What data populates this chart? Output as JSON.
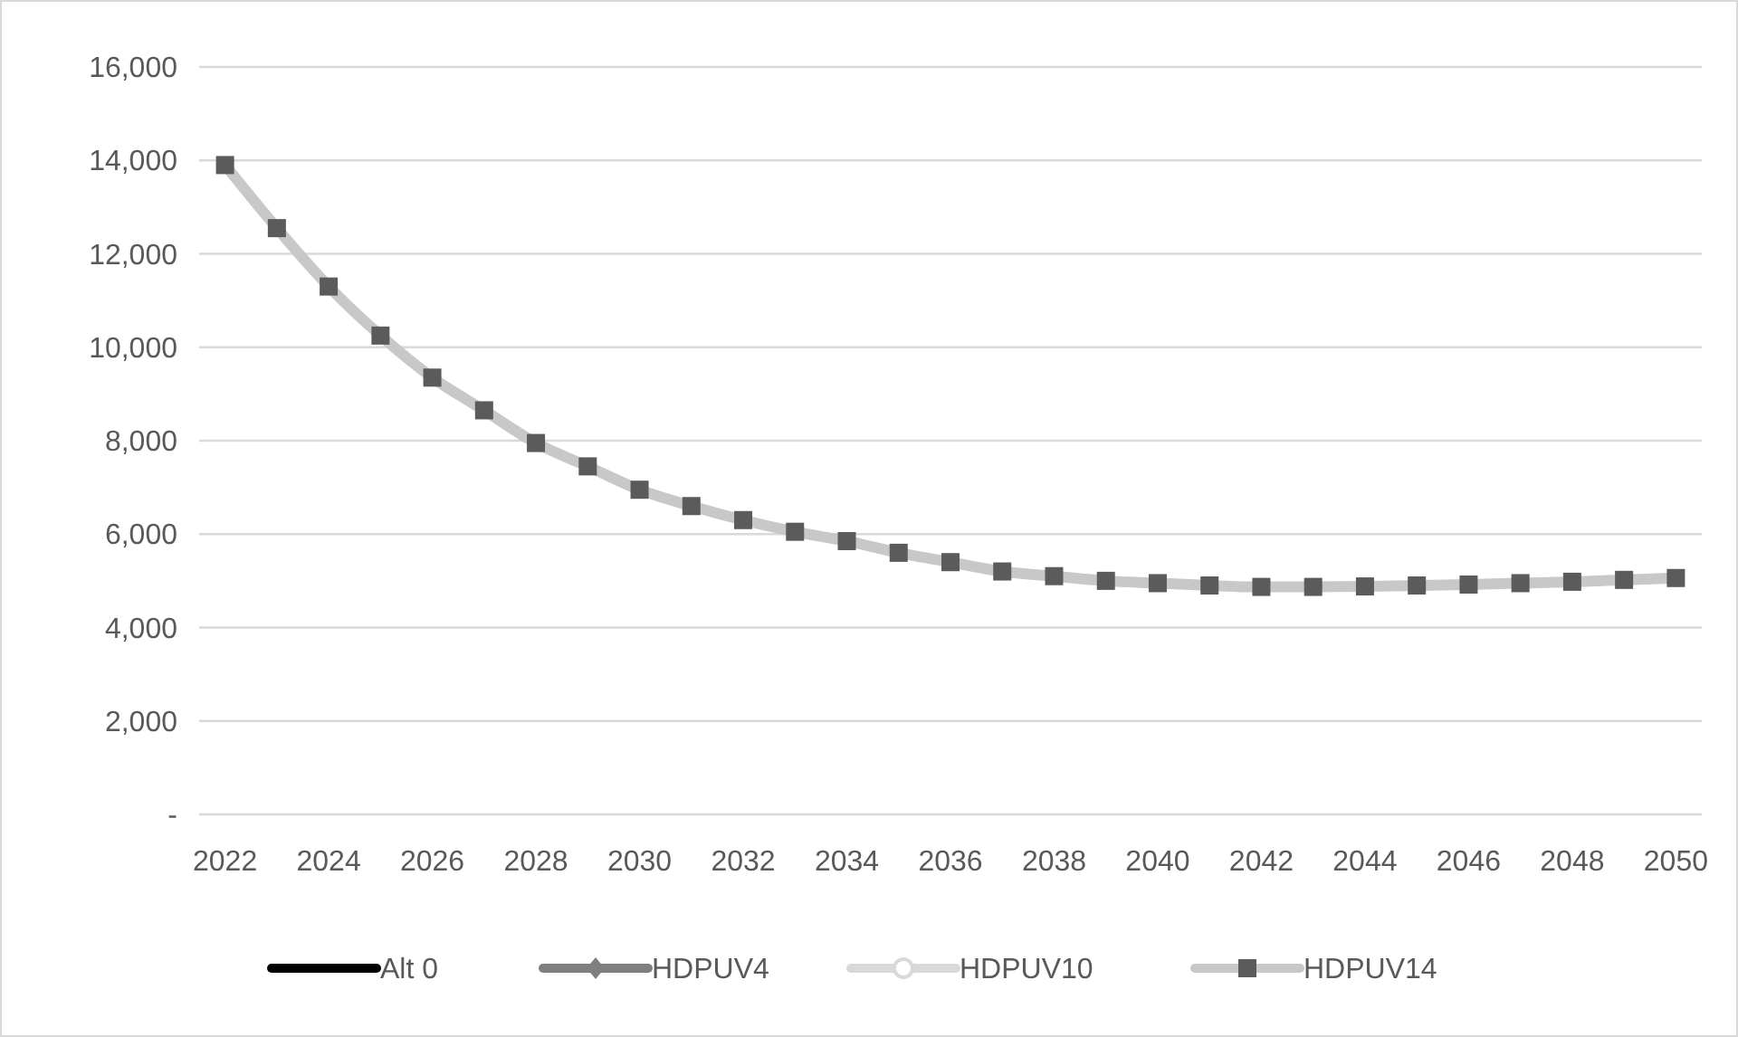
{
  "chart_data": {
    "type": "line",
    "x": [
      2022,
      2023,
      2024,
      2025,
      2026,
      2027,
      2028,
      2029,
      2030,
      2031,
      2032,
      2033,
      2034,
      2035,
      2036,
      2037,
      2038,
      2039,
      2040,
      2041,
      2042,
      2043,
      2044,
      2045,
      2046,
      2047,
      2048,
      2049,
      2050
    ],
    "xlim": [
      2021.5,
      2050.5
    ],
    "xticks": [
      2022,
      2024,
      2026,
      2028,
      2030,
      2032,
      2034,
      2036,
      2038,
      2040,
      2042,
      2044,
      2046,
      2048,
      2050
    ],
    "ylim": [
      0,
      16000
    ],
    "yticks": [
      {
        "value": 0,
        "label": "-"
      },
      {
        "value": 2000,
        "label": "2,000"
      },
      {
        "value": 4000,
        "label": "4,000"
      },
      {
        "value": 6000,
        "label": "6,000"
      },
      {
        "value": 8000,
        "label": "8,000"
      },
      {
        "value": 10000,
        "label": "10,000"
      },
      {
        "value": 12000,
        "label": "12,000"
      },
      {
        "value": 14000,
        "label": "14,000"
      },
      {
        "value": 16000,
        "label": "16,000"
      }
    ],
    "grid": "y",
    "legend": "bottom",
    "series": [
      {
        "name": "Alt 0",
        "color": "#000000",
        "marker": "none",
        "values": [
          null,
          null,
          null,
          null,
          null,
          null,
          null,
          null,
          null,
          null,
          null,
          null,
          null,
          null,
          null,
          null,
          null,
          null,
          null,
          null,
          null,
          null,
          null,
          null,
          null,
          null,
          null,
          null,
          null
        ]
      },
      {
        "name": "HDPUV4",
        "color": "#7f7f7f",
        "marker": "diamond",
        "values": [
          null,
          null,
          null,
          null,
          null,
          null,
          null,
          null,
          null,
          null,
          null,
          null,
          null,
          null,
          null,
          null,
          null,
          null,
          null,
          null,
          null,
          null,
          null,
          null,
          null,
          null,
          null,
          null,
          null
        ]
      },
      {
        "name": "HDPUV10",
        "color": "#d9d9d9",
        "marker": "circle",
        "values": [
          null,
          null,
          null,
          null,
          null,
          null,
          null,
          null,
          null,
          null,
          null,
          null,
          null,
          null,
          null,
          null,
          null,
          null,
          null,
          null,
          null,
          null,
          null,
          null,
          null,
          null,
          null,
          null,
          null
        ]
      },
      {
        "name": "HDPUV14",
        "color": "#c8c8c8",
        "marker": "square",
        "values": [
          13900,
          12550,
          11300,
          10250,
          9350,
          8650,
          7950,
          7450,
          6950,
          6600,
          6300,
          6050,
          5850,
          5600,
          5400,
          5200,
          5100,
          5000,
          4950,
          4900,
          4870,
          4870,
          4880,
          4900,
          4920,
          4950,
          4980,
          5020,
          5060
        ]
      }
    ]
  }
}
